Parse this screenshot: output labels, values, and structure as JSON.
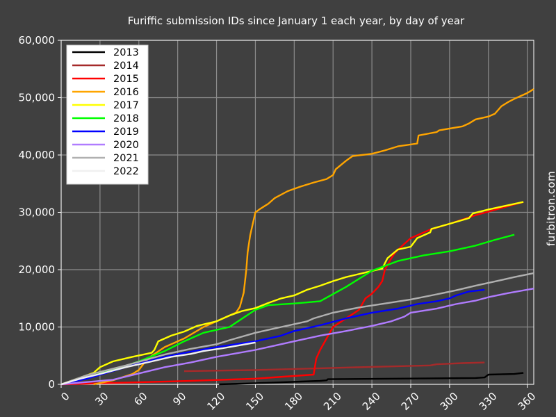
{
  "chart_data": {
    "type": "line",
    "title": "Furiffic submission IDs since January 1 each year, by day of year",
    "xlabel": "",
    "ylabel": "",
    "xlim": [
      0,
      365
    ],
    "ylim": [
      0,
      60000
    ],
    "x_ticks": [
      0,
      30,
      60,
      90,
      120,
      150,
      180,
      210,
      240,
      270,
      300,
      330,
      360
    ],
    "x_tick_labels": [
      "0",
      "30",
      "60",
      "90",
      "120",
      "150",
      "180",
      "210",
      "240",
      "270",
      "300",
      "330",
      "360"
    ],
    "y_ticks": [
      0,
      10000,
      20000,
      30000,
      40000,
      50000,
      60000
    ],
    "y_tick_labels": [
      "0",
      "10,000",
      "20,000",
      "30,000",
      "40,000",
      "50,000",
      "60,000"
    ],
    "grid": true,
    "legend_position": "top-left",
    "watermark": "furbitron.com",
    "series": [
      {
        "name": "2013",
        "color": "#000000",
        "points": [
          [
            122,
            0
          ],
          [
            150,
            200
          ],
          [
            200,
            600
          ],
          [
            205,
            700
          ],
          [
            206,
            900
          ],
          [
            320,
            1100
          ],
          [
            327,
            1200
          ],
          [
            330,
            1700
          ],
          [
            350,
            1800
          ],
          [
            357,
            2000
          ]
        ]
      },
      {
        "name": "2014",
        "color": "#a52a2a",
        "points": [
          [
            95,
            2300
          ],
          [
            150,
            2500
          ],
          [
            200,
            2800
          ],
          [
            250,
            3100
          ],
          [
            285,
            3300
          ],
          [
            290,
            3500
          ],
          [
            310,
            3700
          ],
          [
            327,
            3800
          ]
        ]
      },
      {
        "name": "2015",
        "color": "#ff0000",
        "points": [
          [
            0,
            0
          ],
          [
            50,
            300
          ],
          [
            100,
            600
          ],
          [
            150,
            1000
          ],
          [
            195,
            1700
          ],
          [
            197,
            4500
          ],
          [
            200,
            6000
          ],
          [
            205,
            8000
          ],
          [
            210,
            10000
          ],
          [
            220,
            11500
          ],
          [
            230,
            13000
          ],
          [
            235,
            15000
          ],
          [
            240,
            15800
          ],
          [
            245,
            17000
          ],
          [
            248,
            18000
          ],
          [
            250,
            20000
          ],
          [
            255,
            22000
          ],
          [
            258,
            23000
          ],
          [
            265,
            24500
          ],
          [
            270,
            25500
          ],
          [
            285,
            27000
          ],
          [
            300,
            28000
          ],
          [
            320,
            29500
          ],
          [
            357,
            31800
          ]
        ]
      },
      {
        "name": "2016",
        "color": "#ffa500",
        "points": [
          [
            25,
            0
          ],
          [
            40,
            700
          ],
          [
            55,
            1800
          ],
          [
            60,
            2500
          ],
          [
            65,
            4000
          ],
          [
            70,
            5000
          ],
          [
            80,
            6500
          ],
          [
            95,
            8000
          ],
          [
            110,
            10000
          ],
          [
            125,
            11500
          ],
          [
            135,
            12500
          ],
          [
            138,
            13500
          ],
          [
            141,
            16000
          ],
          [
            143,
            20000
          ],
          [
            144,
            23000
          ],
          [
            145,
            24500
          ],
          [
            146,
            26000
          ],
          [
            148,
            28000
          ],
          [
            150,
            30000
          ],
          [
            153,
            30500
          ],
          [
            160,
            31500
          ],
          [
            165,
            32500
          ],
          [
            175,
            33700
          ],
          [
            185,
            34500
          ],
          [
            195,
            35200
          ],
          [
            205,
            35800
          ],
          [
            210,
            36500
          ],
          [
            212,
            37500
          ],
          [
            220,
            39000
          ],
          [
            225,
            39800
          ],
          [
            240,
            40200
          ],
          [
            250,
            40800
          ],
          [
            260,
            41500
          ],
          [
            275,
            42000
          ],
          [
            276,
            43400
          ],
          [
            290,
            44000
          ],
          [
            292,
            44300
          ],
          [
            310,
            45000
          ],
          [
            315,
            45500
          ],
          [
            320,
            46200
          ],
          [
            330,
            46700
          ],
          [
            335,
            47200
          ],
          [
            340,
            48500
          ],
          [
            345,
            49200
          ],
          [
            350,
            49800
          ],
          [
            355,
            50300
          ],
          [
            360,
            50800
          ],
          [
            365,
            51500
          ]
        ]
      },
      {
        "name": "2017",
        "color": "#ffff00",
        "points": [
          [
            0,
            0
          ],
          [
            25,
            2000
          ],
          [
            30,
            3000
          ],
          [
            40,
            4000
          ],
          [
            55,
            4800
          ],
          [
            70,
            5500
          ],
          [
            72,
            6000
          ],
          [
            75,
            7500
          ],
          [
            85,
            8500
          ],
          [
            95,
            9200
          ],
          [
            105,
            10200
          ],
          [
            120,
            11000
          ],
          [
            130,
            12000
          ],
          [
            140,
            12800
          ],
          [
            150,
            13300
          ],
          [
            160,
            14200
          ],
          [
            170,
            15000
          ],
          [
            180,
            15500
          ],
          [
            190,
            16500
          ],
          [
            200,
            17200
          ],
          [
            210,
            18000
          ],
          [
            220,
            18700
          ],
          [
            235,
            19500
          ],
          [
            248,
            20200
          ],
          [
            252,
            22000
          ],
          [
            260,
            23500
          ],
          [
            270,
            24000
          ],
          [
            275,
            25500
          ],
          [
            285,
            26500
          ],
          [
            286,
            27100
          ],
          [
            300,
            28000
          ],
          [
            315,
            29000
          ],
          [
            318,
            29800
          ],
          [
            330,
            30500
          ],
          [
            357,
            31800
          ]
        ]
      },
      {
        "name": "2018",
        "color": "#00ff00",
        "points": [
          [
            0,
            0
          ],
          [
            20,
            1200
          ],
          [
            40,
            2500
          ],
          [
            60,
            4000
          ],
          [
            80,
            5800
          ],
          [
            95,
            7500
          ],
          [
            110,
            9000
          ],
          [
            130,
            10000
          ],
          [
            140,
            11500
          ],
          [
            150,
            13000
          ],
          [
            160,
            13800
          ],
          [
            180,
            14100
          ],
          [
            200,
            14500
          ],
          [
            220,
            17000
          ],
          [
            240,
            19800
          ],
          [
            260,
            21500
          ],
          [
            280,
            22500
          ],
          [
            300,
            23200
          ],
          [
            320,
            24200
          ],
          [
            335,
            25200
          ],
          [
            350,
            26100
          ]
        ]
      },
      {
        "name": "2019",
        "color": "#0000ff",
        "points": [
          [
            0,
            0
          ],
          [
            20,
            1000
          ],
          [
            50,
            3000
          ],
          [
            80,
            4800
          ],
          [
            100,
            5700
          ],
          [
            120,
            6500
          ],
          [
            150,
            7500
          ],
          [
            170,
            8500
          ],
          [
            180,
            9300
          ],
          [
            200,
            10300
          ],
          [
            220,
            11500
          ],
          [
            240,
            12500
          ],
          [
            260,
            13200
          ],
          [
            275,
            14000
          ],
          [
            290,
            14500
          ],
          [
            300,
            15000
          ],
          [
            305,
            15500
          ],
          [
            315,
            16200
          ],
          [
            327,
            16500
          ]
        ]
      },
      {
        "name": "2020",
        "color": "#b07cff",
        "points": [
          [
            0,
            0
          ],
          [
            40,
            800
          ],
          [
            80,
            3000
          ],
          [
            100,
            3800
          ],
          [
            120,
            4800
          ],
          [
            150,
            6000
          ],
          [
            180,
            7500
          ],
          [
            200,
            8500
          ],
          [
            220,
            9300
          ],
          [
            240,
            10200
          ],
          [
            255,
            11000
          ],
          [
            265,
            11800
          ],
          [
            270,
            12500
          ],
          [
            290,
            13200
          ],
          [
            305,
            14000
          ],
          [
            320,
            14600
          ],
          [
            330,
            15200
          ],
          [
            345,
            15900
          ],
          [
            365,
            16700
          ]
        ]
      },
      {
        "name": "2021",
        "color": "#b0b0b0",
        "points": [
          [
            0,
            0
          ],
          [
            20,
            1600
          ],
          [
            50,
            3300
          ],
          [
            80,
            5200
          ],
          [
            100,
            6200
          ],
          [
            120,
            7000
          ],
          [
            130,
            7700
          ],
          [
            150,
            9000
          ],
          [
            170,
            10000
          ],
          [
            190,
            11000
          ],
          [
            195,
            11500
          ],
          [
            210,
            12500
          ],
          [
            230,
            13400
          ],
          [
            250,
            14100
          ],
          [
            270,
            14800
          ],
          [
            290,
            15700
          ],
          [
            305,
            16400
          ],
          [
            320,
            17200
          ],
          [
            340,
            18200
          ],
          [
            350,
            18700
          ],
          [
            365,
            19400
          ]
        ]
      },
      {
        "name": "2022",
        "color": "#f0f0f0",
        "points": [
          [
            0,
            0
          ],
          [
            15,
            1000
          ],
          [
            30,
            1800
          ],
          [
            50,
            3000
          ],
          [
            70,
            4000
          ],
          [
            85,
            4800
          ],
          [
            100,
            5300
          ],
          [
            110,
            5800
          ],
          [
            125,
            6300
          ],
          [
            140,
            6900
          ],
          [
            150,
            7300
          ]
        ]
      }
    ]
  }
}
